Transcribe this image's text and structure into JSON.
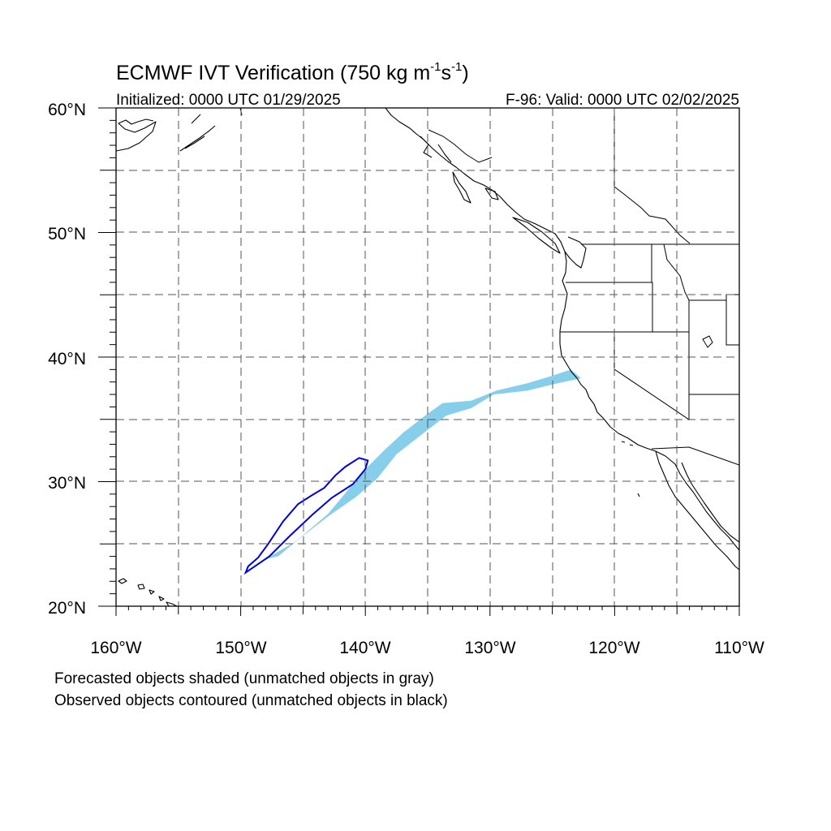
{
  "title": {
    "main": "ECMWF IVT Verification (750 kg m",
    "sup1": "-1",
    "s": "s",
    "sup2": "-1",
    "close": ")"
  },
  "subtitle_left": "Initialized: 0000 UTC 01/29/2025",
  "subtitle_right": "F-96: Valid: 0000 UTC 02/02/2025",
  "axes": {
    "lat_labels": [
      "60°N",
      "50°N",
      "40°N",
      "30°N",
      "20°N"
    ],
    "lon_labels": [
      "160°W",
      "150°W",
      "140°W",
      "130°W",
      "120°W",
      "110°W"
    ],
    "lon_range": [
      -160,
      -110
    ],
    "lat_range": [
      20,
      60
    ],
    "grid": "dashed, every 5°"
  },
  "footer": {
    "line1": "Forecasted objects shaded (unmatched objects in gray)",
    "line2": "Observed objects contoured (unmatched objects in black)"
  },
  "colors": {
    "forecast_fill": "#87CEEB",
    "observed_contour": "#0000DD",
    "coastline": "#000000",
    "grid": "#555555"
  },
  "objects": {
    "forecast_matched": {
      "type": "shaded",
      "lonlat": [
        [
          -148,
          23.8
        ],
        [
          -145.6,
          25.2
        ],
        [
          -143,
          27.4
        ],
        [
          -141.5,
          29.2
        ],
        [
          -140,
          31
        ],
        [
          -138.5,
          32.5
        ],
        [
          -137,
          33.9
        ],
        [
          -135.2,
          35.3
        ],
        [
          -133.8,
          36.3
        ],
        [
          -131.5,
          36.5
        ],
        [
          -129.5,
          37.3
        ],
        [
          -127,
          37.9
        ],
        [
          -125,
          38.5
        ],
        [
          -123.5,
          39
        ],
        [
          -122.7,
          38.3
        ],
        [
          -125,
          37.8
        ],
        [
          -127,
          37.3
        ],
        [
          -129.7,
          37
        ],
        [
          -131.5,
          35.9
        ],
        [
          -133.5,
          35.3
        ],
        [
          -135.2,
          34
        ],
        [
          -137.5,
          32.2
        ],
        [
          -139,
          30.3
        ],
        [
          -140.7,
          28.8
        ],
        [
          -143,
          27.2
        ],
        [
          -145.2,
          25.5
        ],
        [
          -147,
          24
        ]
      ]
    },
    "observed_matched": {
      "type": "contour",
      "lonlat": [
        [
          -149.6,
          22.7
        ],
        [
          -149.4,
          23.2
        ],
        [
          -148.6,
          23.9
        ],
        [
          -147.8,
          25
        ],
        [
          -146.6,
          26.8
        ],
        [
          -145.4,
          28.2
        ],
        [
          -144.3,
          28.9
        ],
        [
          -143.3,
          29.5
        ],
        [
          -142.4,
          30.5
        ],
        [
          -141.6,
          31.2
        ],
        [
          -140.5,
          31.9
        ],
        [
          -139.8,
          31.7
        ],
        [
          -140,
          31
        ],
        [
          -141,
          29.8
        ],
        [
          -142.7,
          28.7
        ],
        [
          -144.3,
          27.3
        ],
        [
          -146.1,
          25.6
        ],
        [
          -147.7,
          24
        ],
        [
          -149.6,
          22.7
        ]
      ]
    }
  }
}
